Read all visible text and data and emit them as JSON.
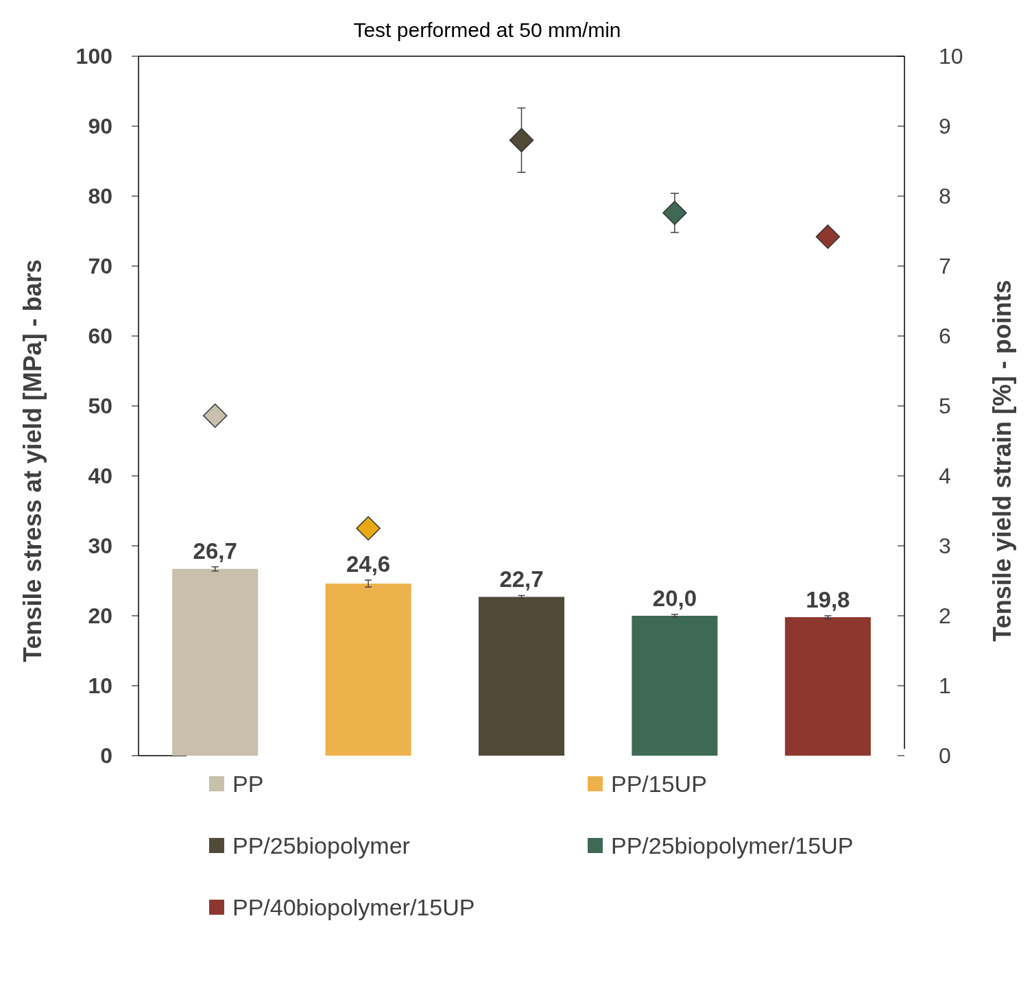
{
  "chart_data": {
    "type": "bar",
    "title": "Test performed at 50 mm/min",
    "ylabel": "Tensile stress at yield [MPa] - bars",
    "y2label": "Tensile yield strain [%] - points",
    "categories": [
      null,
      null,
      null,
      null,
      null
    ],
    "series": [
      {
        "name": "PP",
        "color": "#c8bfac",
        "values": [
          26.7,
          null,
          null,
          null,
          null
        ],
        "errors": [
          0.3,
          null,
          null,
          null,
          null
        ],
        "value_labels": [
          "26,7",
          null,
          null,
          null,
          null
        ]
      },
      {
        "name": "PP/15UP",
        "color": "#eeb24c",
        "values": [
          null,
          24.6,
          null,
          null,
          null
        ],
        "errors": [
          null,
          0.5,
          null,
          null,
          null
        ],
        "value_labels": [
          null,
          "24,6",
          null,
          null,
          null
        ]
      },
      {
        "name": "PP/25biopolymer",
        "color": "#524a38",
        "values": [
          null,
          null,
          22.7,
          null,
          null
        ],
        "errors": [
          null,
          null,
          0.2,
          null,
          null
        ],
        "value_labels": [
          null,
          null,
          "22,7",
          null,
          null
        ]
      },
      {
        "name": "PP/25biopolymer/15UP",
        "color": "#3e6954",
        "values": [
          null,
          null,
          null,
          20.0,
          null
        ],
        "errors": [
          null,
          null,
          null,
          0.2,
          null
        ],
        "value_labels": [
          null,
          null,
          null,
          "20,0",
          null
        ]
      },
      {
        "name": "PP/40biopolymer/15UP",
        "color": "#8e372e",
        "values": [
          null,
          null,
          null,
          null,
          19.8
        ],
        "errors": [
          null,
          null,
          null,
          null,
          0.2
        ],
        "value_labels": [
          null,
          null,
          null,
          null,
          "19,8"
        ]
      },
      {
        "type": "scatter",
        "axis": "y2",
        "color": "#c8bfac",
        "values": [
          4.86,
          null,
          null,
          null,
          null
        ]
      },
      {
        "type": "scatter",
        "axis": "y2",
        "color": "#e8aa10",
        "values": [
          null,
          3.25,
          null,
          null,
          null
        ]
      },
      {
        "type": "scatter",
        "axis": "y2",
        "color": "#524a38",
        "values": [
          null,
          null,
          8.8,
          null,
          null
        ],
        "errors": [
          null,
          null,
          0.46,
          null,
          null
        ]
      },
      {
        "type": "scatter",
        "axis": "y2",
        "color": "#3e6954",
        "values": [
          null,
          null,
          null,
          7.76,
          null
        ],
        "errors": [
          null,
          null,
          null,
          0.28,
          null
        ]
      },
      {
        "type": "scatter",
        "axis": "y2",
        "color": "#8e372e",
        "values": [
          null,
          null,
          null,
          null,
          7.42
        ]
      }
    ],
    "ylim": [
      0,
      100
    ],
    "yticks": [
      0,
      10,
      20,
      30,
      40,
      50,
      60,
      70,
      80,
      90,
      100
    ],
    "y2lim": [
      0,
      10
    ],
    "y2ticks": [
      0,
      1,
      2,
      3,
      4,
      5,
      6,
      7,
      8,
      9,
      10
    ],
    "marker": "diamond",
    "grid": false,
    "legend": "bottom"
  }
}
